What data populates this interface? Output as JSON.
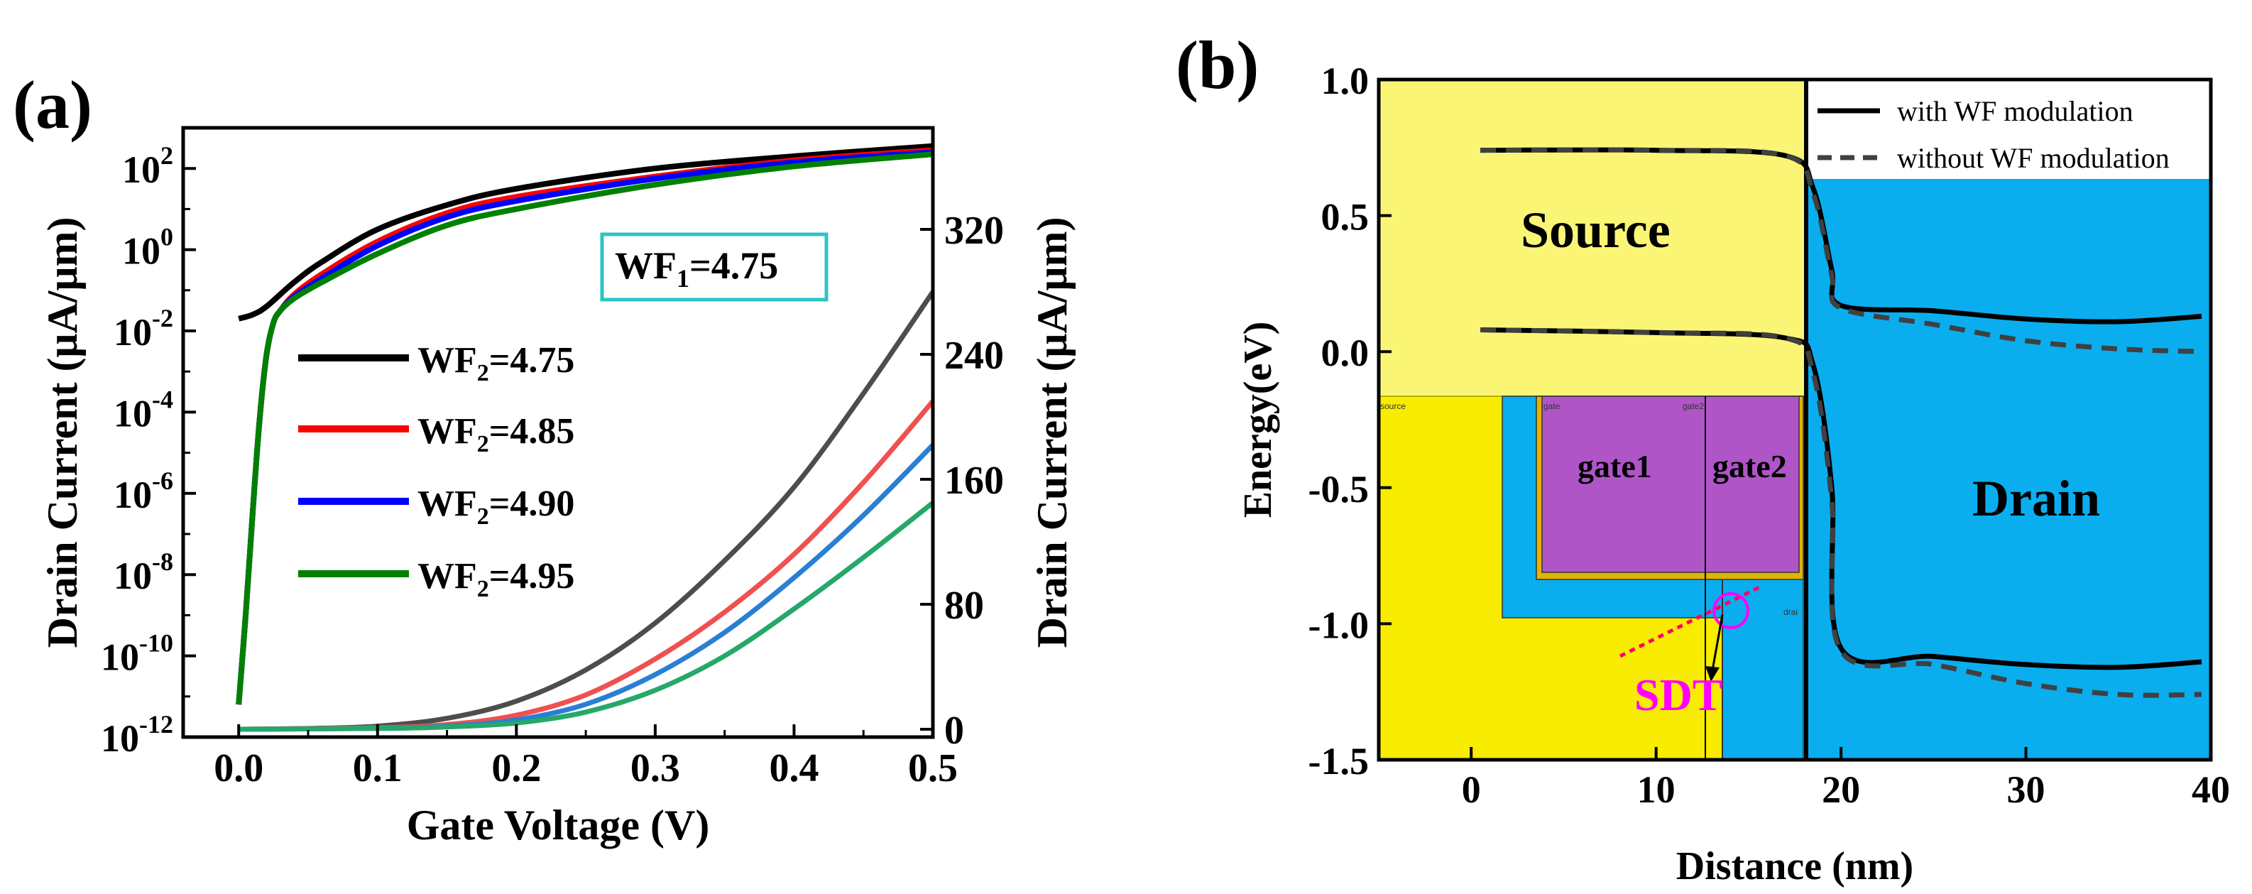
{
  "chart_data": [
    {
      "panel_label": "(a)",
      "type": "line",
      "xlabel": "Gate Voltage (V)",
      "ylabel_left": "Drain Current (μA/μm)",
      "ylabel_right": "Drain Current (μA/μm)",
      "xlim": [
        -0.04,
        0.5
      ],
      "ylim_left_log10": [
        -12,
        3
      ],
      "ylim_right": [
        -5,
        385
      ],
      "x_ticks": [
        "0.0",
        "0.1",
        "0.2",
        "0.3",
        "0.4",
        "0.5"
      ],
      "y_ticks_left": [
        {
          "base": "10",
          "exp": "2",
          "log": 2
        },
        {
          "base": "10",
          "exp": "0",
          "log": 0
        },
        {
          "base": "10",
          "exp": "-2",
          "log": -2
        },
        {
          "base": "10",
          "exp": "-4",
          "log": -4
        },
        {
          "base": "10",
          "exp": "-6",
          "log": -6
        },
        {
          "base": "10",
          "exp": "-8",
          "log": -8
        },
        {
          "base": "10",
          "exp": "-10",
          "log": -10
        },
        {
          "base": "10",
          "exp": "-12",
          "log": -12
        }
      ],
      "y_ticks_right": [
        "0",
        "80",
        "160",
        "240",
        "320"
      ],
      "annotation": {
        "base": "WF",
        "sub": "1",
        "rest": "=4.75",
        "box_color": "#2ec4c4"
      },
      "legend_position": "center-left",
      "series": [
        {
          "name": "WF2=4.75",
          "label": {
            "base": "WF",
            "sub": "2",
            "rest": "=4.75"
          },
          "color": "#000000",
          "linear_color": "#4d4d4d",
          "x_log": [
            0.0,
            0.01,
            0.02,
            0.04,
            0.06,
            0.1,
            0.15,
            0.2,
            0.3,
            0.4,
            0.5
          ],
          "log10_current": [
            -1.7,
            -1.6,
            -1.4,
            -0.8,
            -0.3,
            0.5,
            1.1,
            1.5,
            2.0,
            2.3,
            2.55
          ],
          "x_lin": [
            0.0,
            0.05,
            0.1,
            0.15,
            0.2,
            0.25,
            0.3,
            0.35,
            0.4,
            0.45,
            0.5
          ],
          "current": [
            0,
            0.5,
            2,
            7,
            18,
            38,
            68,
            108,
            155,
            215,
            280
          ]
        },
        {
          "name": "WF2=4.85",
          "label": {
            "base": "WF",
            "sub": "2",
            "rest": "=4.85"
          },
          "color": "#ff0000",
          "linear_color": "#f05050",
          "x_log": [
            0.0,
            0.005,
            0.01,
            0.015,
            0.02,
            0.025,
            0.03,
            0.04,
            0.06,
            0.1,
            0.15,
            0.2,
            0.3,
            0.4,
            0.5
          ],
          "log10_current": [
            -11.2,
            -9,
            -6.5,
            -4.2,
            -2.6,
            -1.8,
            -1.5,
            -1.1,
            -0.6,
            0.2,
            0.9,
            1.3,
            1.8,
            2.2,
            2.45
          ],
          "x_lin": [
            0.0,
            0.1,
            0.15,
            0.2,
            0.25,
            0.3,
            0.35,
            0.4,
            0.45,
            0.5
          ],
          "current": [
            0,
            1,
            3,
            9,
            22,
            45,
            75,
            112,
            158,
            210
          ]
        },
        {
          "name": "WF2=4.90",
          "label": {
            "base": "WF",
            "sub": "2",
            "rest": "=4.90"
          },
          "color": "#0000ff",
          "linear_color": "#2a7fd4",
          "x_log": [
            0.0,
            0.005,
            0.01,
            0.015,
            0.02,
            0.025,
            0.03,
            0.04,
            0.06,
            0.1,
            0.15,
            0.2,
            0.3,
            0.4,
            0.5
          ],
          "log10_current": [
            -11.2,
            -9,
            -6.5,
            -4.2,
            -2.6,
            -1.8,
            -1.5,
            -1.15,
            -0.7,
            0.1,
            0.8,
            1.2,
            1.75,
            2.15,
            2.4
          ],
          "x_lin": [
            0.0,
            0.1,
            0.15,
            0.2,
            0.25,
            0.3,
            0.35,
            0.4,
            0.45,
            0.5
          ],
          "current": [
            0,
            0.7,
            2,
            6,
            16,
            35,
            62,
            97,
            137,
            182
          ]
        },
        {
          "name": "WF2=4.95",
          "label": {
            "base": "WF",
            "sub": "2",
            "rest": "=4.95"
          },
          "color": "#008000",
          "linear_color": "#26a86a",
          "x_log": [
            0.0,
            0.005,
            0.01,
            0.015,
            0.02,
            0.025,
            0.03,
            0.04,
            0.06,
            0.1,
            0.15,
            0.2,
            0.3,
            0.4,
            0.5
          ],
          "log10_current": [
            -11.2,
            -9,
            -6.5,
            -4.2,
            -2.6,
            -1.8,
            -1.5,
            -1.2,
            -0.8,
            -0.1,
            0.6,
            1.0,
            1.6,
            2.05,
            2.35
          ],
          "x_lin": [
            0.0,
            0.1,
            0.15,
            0.2,
            0.25,
            0.3,
            0.35,
            0.4,
            0.45,
            0.5
          ],
          "current": [
            0,
            0.5,
            1.5,
            4,
            11,
            25,
            47,
            77,
            110,
            145
          ]
        }
      ]
    },
    {
      "panel_label": "(b)",
      "type": "line",
      "xlabel": "Distance (nm)",
      "ylabel": "Energy(eV)",
      "xlim": [
        -5,
        40
      ],
      "ylim": [
        -1.5,
        1.0
      ],
      "x_ticks": [
        "0",
        "10",
        "20",
        "30",
        "40"
      ],
      "y_ticks": [
        "1.0",
        "0.5",
        "0.0",
        "-0.5",
        "-1.0",
        "-1.5"
      ],
      "legend_position": "top-right",
      "regions": {
        "source_label": "Source",
        "drain_label": "Drain",
        "gate1_label": "gate1",
        "gate2_label": "gate2",
        "small_source": "source",
        "small_gate": "gate",
        "small_gate2": "gate2",
        "small_drain": "drai",
        "sdt_label": "SDT",
        "colors": {
          "source": "#fbf576",
          "drain": "#0aaeef",
          "inset_source": "#f8ec00",
          "gate": "#b055c8",
          "gate_border": "#e0b400",
          "sdt": "#ff00ff",
          "tunnel_line": "#ff0066"
        }
      },
      "series": [
        {
          "name": "with WF modulation",
          "style": "solid",
          "color": "#000000",
          "bands": [
            {
              "x": [
                0.5,
                10,
                17,
                18.5,
                19.5,
                20,
                25,
                30,
                35,
                39.5
              ],
              "y": [
                0.74,
                0.74,
                0.72,
                0.6,
                0.3,
                0.17,
                0.15,
                0.12,
                0.11,
                0.13
              ]
            },
            {
              "x": [
                0.5,
                10,
                17,
                18.5,
                19.5,
                20,
                25,
                30,
                35,
                39.5
              ],
              "y": [
                0.08,
                0.07,
                0.05,
                -0.05,
                -0.5,
                -1.09,
                -1.12,
                -1.15,
                -1.16,
                -1.14
              ]
            }
          ]
        },
        {
          "name": "without WF modulation",
          "style": "dashed",
          "color": "#404040",
          "bands": [
            {
              "x": [
                0.5,
                10,
                17,
                18.5,
                19.5,
                20,
                25,
                30,
                35,
                39.5
              ],
              "y": [
                0.74,
                0.74,
                0.72,
                0.58,
                0.28,
                0.16,
                0.1,
                0.04,
                0.01,
                0.0
              ]
            },
            {
              "x": [
                0.5,
                10,
                17,
                18.5,
                19.5,
                20,
                25,
                30,
                35,
                39.5
              ],
              "y": [
                0.08,
                0.07,
                0.05,
                -0.08,
                -0.55,
                -1.1,
                -1.15,
                -1.22,
                -1.26,
                -1.26
              ]
            }
          ]
        }
      ]
    }
  ]
}
